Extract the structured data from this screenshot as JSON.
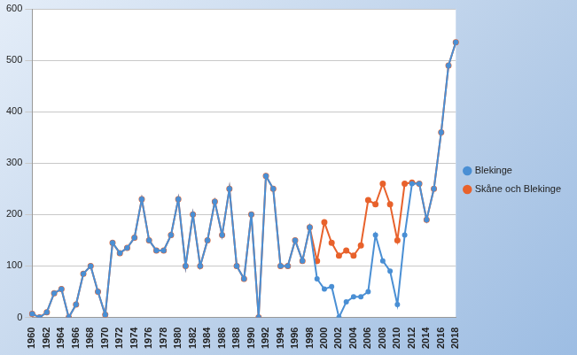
{
  "chart_data": {
    "type": "line",
    "categories": [
      "1960",
      null,
      "1962",
      null,
      "1964",
      null,
      "1966",
      null,
      "1968",
      null,
      "1970",
      null,
      "1972",
      null,
      "1974",
      null,
      "1976",
      null,
      "1978",
      null,
      "1980",
      null,
      "1982",
      null,
      "1984",
      null,
      "1986",
      null,
      "1988",
      null,
      "1990",
      null,
      "1992",
      null,
      "1994",
      null,
      "1996",
      null,
      "1998",
      null,
      "2000",
      null,
      "2002",
      null,
      "2004",
      null,
      "2006",
      null,
      "2008",
      null,
      "2010",
      null,
      "2012",
      null,
      "2014",
      null,
      "2016",
      null,
      "2018"
    ],
    "series": [
      {
        "name": "Blekinge",
        "color": "#4a8fd4",
        "values": [
          7,
          0,
          10,
          47,
          55,
          0,
          25,
          85,
          100,
          50,
          5,
          145,
          125,
          135,
          155,
          230,
          150,
          130,
          130,
          160,
          230,
          100,
          200,
          100,
          150,
          225,
          160,
          250,
          100,
          75,
          200,
          0,
          275,
          250,
          100,
          100,
          150,
          110,
          175,
          75,
          55,
          60,
          0,
          30,
          40,
          40,
          50,
          160,
          110,
          90,
          25,
          160,
          260,
          260,
          190,
          250,
          360,
          490,
          535
        ]
      },
      {
        "name": "Skåne och Blekinge",
        "color": "#e8622c",
        "values": [
          7,
          0,
          10,
          47,
          55,
          0,
          25,
          85,
          100,
          50,
          5,
          145,
          125,
          135,
          155,
          230,
          150,
          130,
          130,
          160,
          230,
          100,
          200,
          100,
          150,
          225,
          160,
          250,
          100,
          75,
          200,
          0,
          275,
          250,
          100,
          100,
          150,
          110,
          175,
          110,
          185,
          145,
          120,
          130,
          120,
          140,
          228,
          220,
          260,
          220,
          150,
          260,
          262,
          260,
          190,
          250,
          360,
          490,
          535
        ]
      }
    ],
    "ylim": [
      0,
      600
    ],
    "yticks": [
      0,
      100,
      200,
      300,
      400,
      500,
      600
    ],
    "grid": true,
    "legend": "right"
  }
}
